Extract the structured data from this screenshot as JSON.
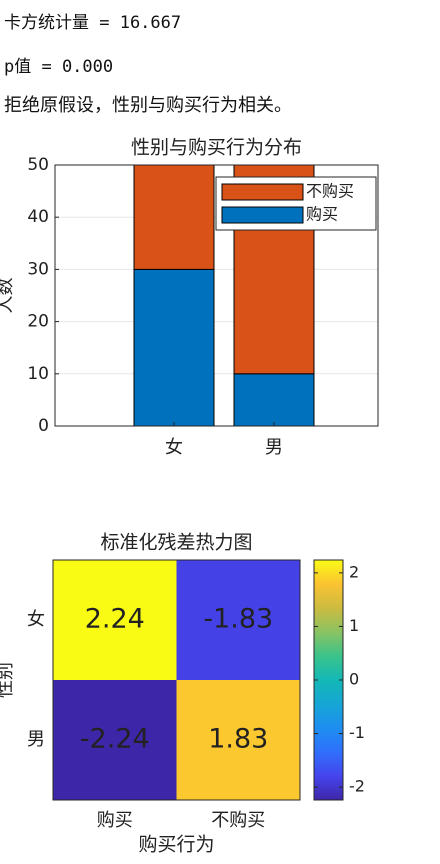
{
  "text_output": [
    "卡方统计量 = 16.667",
    "p值 = 0.000",
    "拒绝原假设，性别与购买行为相关。"
  ],
  "chart_data": [
    {
      "type": "bar",
      "stacked": true,
      "title": "性别与购买行为分布",
      "ylabel": "人数",
      "categories": [
        "女",
        "男"
      ],
      "series": [
        {
          "name": "购买",
          "color": "#0072bd",
          "values": [
            30,
            10
          ]
        },
        {
          "name": "不购买",
          "color": "#d95319",
          "values": [
            20,
            40
          ]
        }
      ],
      "ylim": [
        0,
        50
      ],
      "yticks": [
        0,
        10,
        20,
        30,
        40,
        50
      ],
      "grid": true,
      "legend": "northeast"
    },
    {
      "type": "heatmap",
      "title": "标准化残差热力图",
      "xlabel": "购买行为",
      "ylabel": "性别",
      "x_categories": [
        "购买",
        "不购买"
      ],
      "y_categories": [
        "女",
        "男"
      ],
      "values": [
        [
          2.24,
          -1.83
        ],
        [
          -2.24,
          1.83
        ]
      ],
      "colormap": "parula",
      "clim": [
        -2.24,
        2.24
      ],
      "cticks": [
        -2,
        -1,
        0,
        1,
        2
      ]
    }
  ]
}
